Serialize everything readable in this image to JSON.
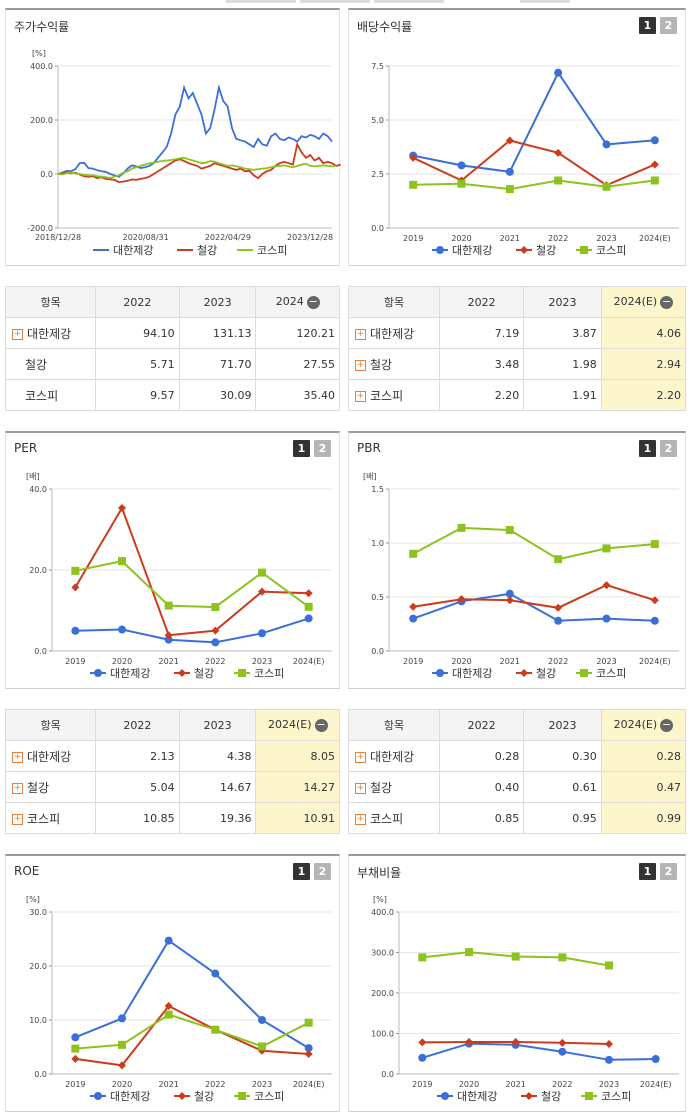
{
  "tabs": [
    {
      "label": ""
    },
    {
      "label": ""
    },
    {
      "label": ""
    },
    {
      "label": ""
    }
  ],
  "panels": [
    {
      "id": "stock",
      "title": "주가수익률",
      "unit": "[%]",
      "buttons": []
    },
    {
      "id": "div",
      "title": "배당수익률",
      "unit": "",
      "buttons": [
        "1",
        "2"
      ]
    },
    {
      "id": "per",
      "title": "PER",
      "unit": "[배]",
      "buttons": [
        "1",
        "2"
      ]
    },
    {
      "id": "pbr",
      "title": "PBR",
      "unit": "[배]",
      "buttons": [
        "1",
        "2"
      ]
    },
    {
      "id": "roe",
      "title": "ROE",
      "unit": "[%]",
      "buttons": [
        "1",
        "2"
      ]
    },
    {
      "id": "debt",
      "title": "부채비율",
      "unit": "[%]",
      "buttons": [
        "1",
        "2"
      ]
    }
  ],
  "tables": [
    {
      "id": "stock",
      "headers": [
        "항목",
        "2022",
        "2023",
        "2024"
      ],
      "rows": [
        {
          "name": "대한제강",
          "values": [
            "94.10",
            "131.13",
            "120.21"
          ],
          "plus": true
        },
        {
          "name": "철강",
          "values": [
            "5.71",
            "71.70",
            "27.55"
          ],
          "plus": false
        },
        {
          "name": "코스피",
          "values": [
            "9.57",
            "30.09",
            "35.40"
          ],
          "plus": false
        }
      ]
    },
    {
      "id": "div",
      "headers": [
        "항목",
        "2022",
        "2023",
        "2024(E)"
      ],
      "rows": [
        {
          "name": "대한제강",
          "values": [
            "7.19",
            "3.87",
            "4.06"
          ],
          "plus": true
        },
        {
          "name": "철강",
          "values": [
            "3.48",
            "1.98",
            "2.94"
          ],
          "plus": true
        },
        {
          "name": "코스피",
          "values": [
            "2.20",
            "1.91",
            "2.20"
          ],
          "plus": true
        }
      ]
    },
    {
      "id": "per",
      "headers": [
        "항목",
        "2022",
        "2023",
        "2024(E)"
      ],
      "rows": [
        {
          "name": "대한제강",
          "values": [
            "2.13",
            "4.38",
            "8.05"
          ],
          "plus": true
        },
        {
          "name": "철강",
          "values": [
            "5.04",
            "14.67",
            "14.27"
          ],
          "plus": true
        },
        {
          "name": "코스피",
          "values": [
            "10.85",
            "19.36",
            "10.91"
          ],
          "plus": true
        }
      ]
    },
    {
      "id": "pbr",
      "headers": [
        "항목",
        "2022",
        "2023",
        "2024(E)"
      ],
      "rows": [
        {
          "name": "대한제강",
          "values": [
            "0.28",
            "0.30",
            "0.28"
          ],
          "plus": true
        },
        {
          "name": "철강",
          "values": [
            "0.40",
            "0.61",
            "0.47"
          ],
          "plus": true
        },
        {
          "name": "코스피",
          "values": [
            "0.85",
            "0.95",
            "0.99"
          ],
          "plus": true
        }
      ]
    }
  ],
  "chart_data": [
    {
      "id": "stock",
      "type": "line",
      "ylabel": "[%]",
      "ylim": [
        -200,
        400
      ],
      "yticks": [
        "400.0",
        "200.0",
        "0.0",
        "-200.0"
      ],
      "xticks": [
        "2018/12/28",
        "2020/08/31",
        "2022/04/29",
        "2023/12/28"
      ],
      "series": [
        {
          "name": "대한제강",
          "color": "#3a6fd8",
          "values": [
            0,
            5,
            12,
            10,
            18,
            40,
            42,
            22,
            20,
            14,
            10,
            8,
            0,
            -5,
            -10,
            2,
            20,
            32,
            28,
            22,
            25,
            30,
            40,
            60,
            80,
            100,
            150,
            220,
            250,
            320,
            280,
            300,
            260,
            220,
            150,
            170,
            240,
            320,
            270,
            250,
            170,
            130,
            125,
            120,
            110,
            100,
            130,
            110,
            105,
            140,
            150,
            130,
            125,
            135,
            130,
            120,
            140,
            135,
            145,
            140,
            130,
            150,
            140,
            120
          ]
        },
        {
          "name": "철강",
          "color": "#cc3b1c",
          "values": [
            0,
            3,
            4,
            2,
            5,
            -2,
            -8,
            -10,
            -8,
            -15,
            -12,
            -18,
            -20,
            -22,
            -30,
            -28,
            -25,
            -20,
            -22,
            -18,
            -15,
            -10,
            0,
            10,
            20,
            30,
            40,
            50,
            55,
            48,
            40,
            35,
            30,
            20,
            25,
            30,
            40,
            35,
            30,
            25,
            20,
            15,
            20,
            10,
            12,
            -5,
            -15,
            0,
            10,
            15,
            30,
            40,
            45,
            40,
            35,
            110,
            80,
            60,
            70,
            50,
            60,
            40,
            45,
            40,
            30,
            35
          ]
        },
        {
          "name": "코스피",
          "color": "#8dc21f",
          "values": [
            0,
            -2,
            3,
            5,
            2,
            0,
            -3,
            -5,
            -4,
            -8,
            -10,
            -12,
            -15,
            -10,
            -5,
            5,
            10,
            20,
            25,
            30,
            35,
            40,
            42,
            45,
            48,
            50,
            52,
            55,
            58,
            60,
            55,
            50,
            45,
            40,
            42,
            48,
            45,
            40,
            35,
            30,
            32,
            28,
            25,
            20,
            18,
            15,
            18,
            20,
            22,
            25,
            28,
            30,
            32,
            28,
            25,
            30,
            35,
            38,
            30,
            28,
            30,
            32,
            30,
            28,
            30
          ]
        }
      ]
    },
    {
      "id": "div",
      "type": "line",
      "ylim": [
        0,
        7.5
      ],
      "yticks": [
        "7.5",
        "5.0",
        "2.5",
        "0.0"
      ],
      "categories": [
        "2019",
        "2020",
        "2021",
        "2022",
        "2023",
        "2024(E)"
      ],
      "series": [
        {
          "name": "대한제강",
          "color": "#3a6fd8",
          "marker": "circle",
          "values": [
            3.35,
            2.9,
            2.6,
            7.19,
            3.87,
            4.06
          ]
        },
        {
          "name": "철강",
          "color": "#cc3b1c",
          "marker": "diamond",
          "values": [
            3.25,
            2.2,
            4.05,
            3.48,
            1.98,
            2.94
          ]
        },
        {
          "name": "코스피",
          "color": "#8dc21f",
          "marker": "square",
          "values": [
            2.0,
            2.05,
            1.8,
            2.2,
            1.91,
            2.2
          ]
        }
      ]
    },
    {
      "id": "per",
      "type": "line",
      "ylabel": "[배]",
      "ylim": [
        0,
        40
      ],
      "yticks": [
        "40.0",
        "20.0",
        "0.0"
      ],
      "categories": [
        "2019",
        "2020",
        "2021",
        "2022",
        "2023",
        "2024(E)"
      ],
      "series": [
        {
          "name": "대한제강",
          "color": "#3a6fd8",
          "marker": "circle",
          "values": [
            5.0,
            5.3,
            2.8,
            2.13,
            4.38,
            8.05
          ]
        },
        {
          "name": "철강",
          "color": "#cc3b1c",
          "marker": "diamond",
          "values": [
            15.7,
            35.3,
            3.9,
            5.04,
            14.67,
            14.27
          ]
        },
        {
          "name": "코스피",
          "color": "#8dc21f",
          "marker": "square",
          "values": [
            19.8,
            22.2,
            11.2,
            10.85,
            19.36,
            10.91
          ]
        }
      ]
    },
    {
      "id": "pbr",
      "type": "line",
      "ylabel": "[배]",
      "ylim": [
        0,
        1.5
      ],
      "yticks": [
        "1.5",
        "1.0",
        "0.5",
        "0.0"
      ],
      "categories": [
        "2019",
        "2020",
        "2021",
        "2022",
        "2023",
        "2024(E)"
      ],
      "series": [
        {
          "name": "대한제강",
          "color": "#3a6fd8",
          "marker": "circle",
          "values": [
            0.3,
            0.46,
            0.53,
            0.28,
            0.3,
            0.28
          ]
        },
        {
          "name": "철강",
          "color": "#cc3b1c",
          "marker": "diamond",
          "values": [
            0.41,
            0.48,
            0.47,
            0.4,
            0.61,
            0.47
          ]
        },
        {
          "name": "코스피",
          "color": "#8dc21f",
          "marker": "square",
          "values": [
            0.9,
            1.14,
            1.12,
            0.85,
            0.95,
            0.99
          ]
        }
      ]
    },
    {
      "id": "roe",
      "type": "line",
      "ylabel": "[%]",
      "ylim": [
        0,
        30
      ],
      "yticks": [
        "30.0",
        "20.0",
        "10.0",
        "0.0"
      ],
      "categories": [
        "2019",
        "2020",
        "2021",
        "2022",
        "2023",
        "2024(E)"
      ],
      "series": [
        {
          "name": "대한제강",
          "color": "#3a6fd8",
          "marker": "circle",
          "values": [
            6.8,
            10.3,
            24.7,
            18.6,
            10.0,
            4.8
          ]
        },
        {
          "name": "철강",
          "color": "#cc3b1c",
          "marker": "diamond",
          "values": [
            2.8,
            1.6,
            12.6,
            8.2,
            4.3,
            3.7
          ]
        },
        {
          "name": "코스피",
          "color": "#8dc21f",
          "marker": "square",
          "values": [
            4.7,
            5.4,
            11.0,
            8.2,
            5.1,
            9.5
          ]
        }
      ]
    },
    {
      "id": "debt",
      "type": "line",
      "ylabel": "[%]",
      "ylim": [
        0,
        400
      ],
      "yticks": [
        "400.0",
        "300.0",
        "200.0",
        "100.0",
        "0.0"
      ],
      "categories": [
        "2019",
        "2020",
        "2021",
        "2022",
        "2023",
        "2024(E)"
      ],
      "series": [
        {
          "name": "대한제강",
          "color": "#3a6fd8",
          "marker": "circle",
          "values": [
            40,
            75,
            72,
            55,
            35,
            37
          ]
        },
        {
          "name": "철강",
          "color": "#cc3b1c",
          "marker": "diamond",
          "values": [
            78,
            79,
            79,
            77,
            74,
            null
          ]
        },
        {
          "name": "코스피",
          "color": "#8dc21f",
          "marker": "square",
          "values": [
            288,
            301,
            290,
            288,
            268,
            null
          ]
        }
      ]
    }
  ]
}
